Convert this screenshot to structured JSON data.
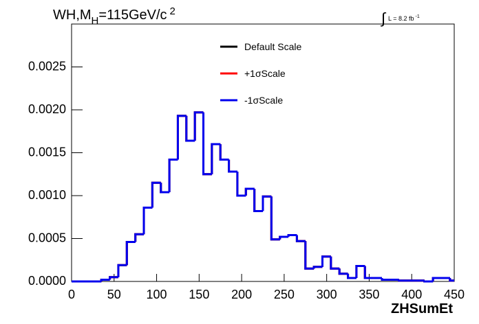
{
  "chart_data": {
    "type": "histogram",
    "title": [
      "WH,M",
      "H",
      "=115GeV/c",
      "2"
    ],
    "lumi": [
      "∫",
      "L = 8.2 fb",
      "-1"
    ],
    "xlabel": "ZHSumEt",
    "bins": [
      0,
      5,
      15,
      25,
      35,
      45,
      55,
      65,
      75,
      85,
      95,
      105,
      115,
      125,
      135,
      145,
      155,
      165,
      175,
      185,
      195,
      205,
      215,
      225,
      235,
      245,
      255,
      265,
      275,
      285,
      295,
      305,
      315,
      325,
      335,
      345,
      355,
      365,
      375,
      385,
      395,
      405,
      415,
      425,
      435,
      445,
      450
    ],
    "series": [
      {
        "name": "Default Scale",
        "color": "#000000",
        "values": [
          0,
          0,
          0,
          0,
          2e-05,
          5e-05,
          0.00019,
          0.00046,
          0.00055,
          0.00086,
          0.00115,
          0.00104,
          0.00142,
          0.00193,
          0.00164,
          0.00197,
          0.00125,
          0.0016,
          0.00142,
          0.00128,
          0.001,
          0.00108,
          0.00082,
          0.00099,
          0.00049,
          0.00052,
          0.00054,
          0.00047,
          0.00015,
          0.00017,
          0.00029,
          0.00015,
          9e-05,
          4e-05,
          0.00018,
          4e-05,
          4e-05,
          2e-05,
          2e-05,
          1e-05,
          1e-05,
          1e-05,
          0,
          4e-05,
          4e-05,
          1e-05
        ]
      },
      {
        "name": "+1σScale",
        "color": "#ff0000",
        "values": [
          0,
          0,
          0,
          0,
          2e-05,
          5e-05,
          0.00019,
          0.00046,
          0.00055,
          0.00086,
          0.00115,
          0.00104,
          0.00142,
          0.00193,
          0.00164,
          0.00197,
          0.00125,
          0.0016,
          0.00142,
          0.00128,
          0.001,
          0.00108,
          0.00082,
          0.00099,
          0.00049,
          0.00052,
          0.00054,
          0.00047,
          0.00015,
          0.00017,
          0.00029,
          0.00015,
          9e-05,
          4e-05,
          0.00018,
          4e-05,
          4e-05,
          2e-05,
          2e-05,
          1e-05,
          1e-05,
          1e-05,
          0,
          4e-05,
          4e-05,
          1e-05
        ]
      },
      {
        "name": "-1σScale",
        "color": "#0000ee",
        "values": [
          0,
          0,
          0,
          0,
          2e-05,
          5e-05,
          0.00019,
          0.00046,
          0.00055,
          0.00086,
          0.00115,
          0.00104,
          0.00142,
          0.00193,
          0.00164,
          0.00197,
          0.00125,
          0.0016,
          0.00142,
          0.00128,
          0.001,
          0.00108,
          0.00082,
          0.00099,
          0.00049,
          0.00052,
          0.00054,
          0.00047,
          0.00015,
          0.00017,
          0.00029,
          0.00015,
          9e-05,
          4e-05,
          0.00018,
          4e-05,
          4e-05,
          2e-05,
          2e-05,
          1e-05,
          1e-05,
          1e-05,
          0,
          4e-05,
          4e-05,
          1e-05
        ]
      }
    ],
    "xlim": [
      0,
      450
    ],
    "xticks": [
      0,
      50,
      100,
      150,
      200,
      250,
      300,
      350,
      400,
      450
    ],
    "ylim": [
      0,
      0.003
    ],
    "yticks": [
      {
        "value": 0,
        "label": "0.0000"
      },
      {
        "value": 0.0005,
        "label": "0.0005"
      },
      {
        "value": 0.001,
        "label": "0.0010"
      },
      {
        "value": 0.0015,
        "label": "0.0015"
      },
      {
        "value": 0.002,
        "label": "0.0020"
      },
      {
        "value": 0.0025,
        "label": "0.0025"
      }
    ],
    "grid": false,
    "legend": "top"
  }
}
